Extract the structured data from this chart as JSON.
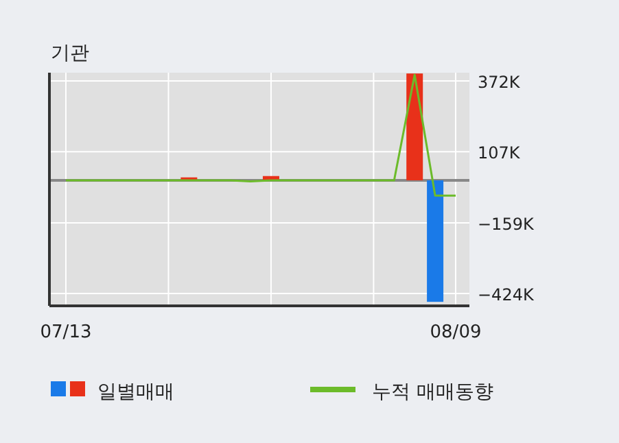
{
  "chart_data": {
    "type": "bar",
    "title": "기관",
    "categories": [
      "07/13",
      null,
      null,
      null,
      null,
      null,
      null,
      null,
      null,
      null,
      null,
      null,
      null,
      null,
      null,
      null,
      null,
      null,
      null,
      "08/09"
    ],
    "series": [
      {
        "name": "일별매매",
        "colors": [
          "#e8311a",
          "#e8311a",
          "#e8311a",
          "#e8311a",
          "#e8311a",
          "#e8311a",
          "#e8311a",
          "#e8311a",
          "#e8311a",
          "#e8311a",
          "#e8311a",
          "#e8311a",
          "#e8311a",
          "#e8311a",
          "#e8311a",
          "#e8311a",
          "#e8311a",
          "#e8311a",
          "#1a7ae8",
          "#e8311a"
        ],
        "values": [
          0,
          0,
          0,
          0,
          0,
          0,
          11000,
          0,
          0,
          0,
          16000,
          0,
          0,
          0,
          0,
          0,
          0,
          400000,
          -455000,
          0
        ]
      },
      {
        "name": "누적 매매동향",
        "type": "line",
        "color": "#6cbb2a",
        "values": [
          0,
          0,
          0,
          0,
          0,
          0,
          0,
          0,
          0,
          -4000,
          0,
          0,
          0,
          0,
          0,
          0,
          0,
          395000,
          -57000,
          -57000
        ]
      }
    ],
    "ylim": [
      -470000,
      403000
    ],
    "yticks": [
      {
        "value": 372000,
        "label": "372K"
      },
      {
        "value": 107000,
        "label": "107K"
      },
      {
        "value": -159000,
        "label": "−159K"
      },
      {
        "value": -424000,
        "label": "−424K"
      }
    ],
    "grid": true,
    "legend": "bottom",
    "ref_lines": [
      {
        "axis": "y",
        "value": 0,
        "color": "#888888"
      }
    ]
  }
}
